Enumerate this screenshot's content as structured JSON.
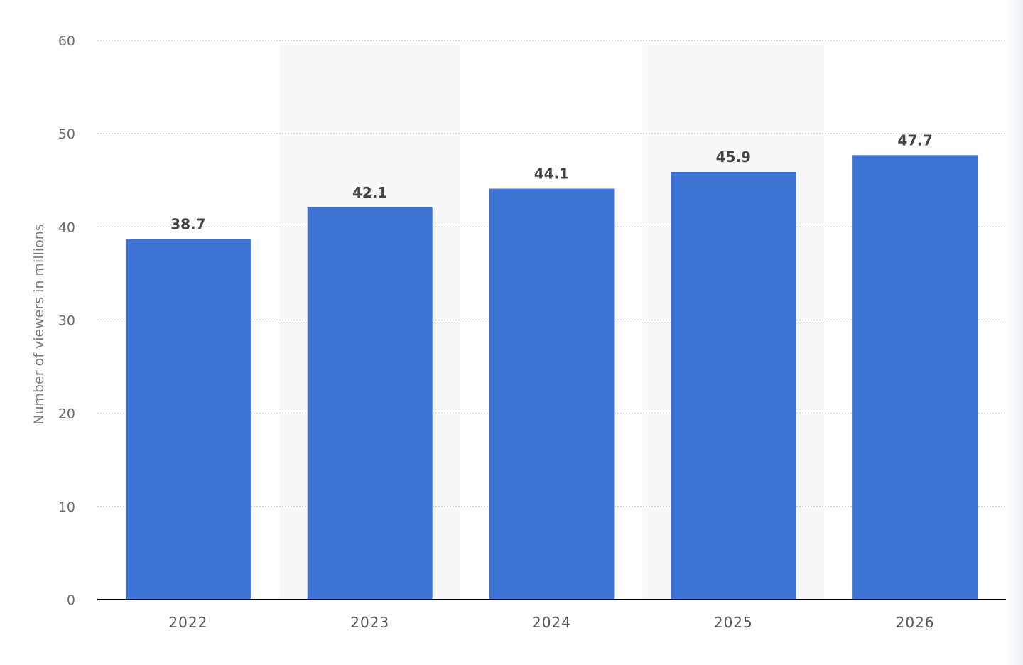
{
  "chart_data": {
    "type": "bar",
    "categories": [
      "2022",
      "2023",
      "2024",
      "2025",
      "2026"
    ],
    "values": [
      38.7,
      42.1,
      44.1,
      45.9,
      47.7
    ],
    "data_labels": [
      "38.7",
      "42.1",
      "44.1",
      "45.9",
      "47.7"
    ],
    "title": "",
    "xlabel": "",
    "ylabel": "Number of viewers in millions",
    "ylim": [
      0,
      60
    ],
    "yticks": [
      0,
      10,
      20,
      30,
      40,
      50,
      60
    ],
    "ytick_labels": [
      "0",
      "10",
      "20",
      "30",
      "40",
      "50",
      "60"
    ],
    "grid": true,
    "alternating_band_shading": true,
    "colors": {
      "bar": "#3e73d6",
      "band": "#f8f8f8",
      "grid": "#b5b5b5",
      "baseline": "#000000"
    }
  }
}
